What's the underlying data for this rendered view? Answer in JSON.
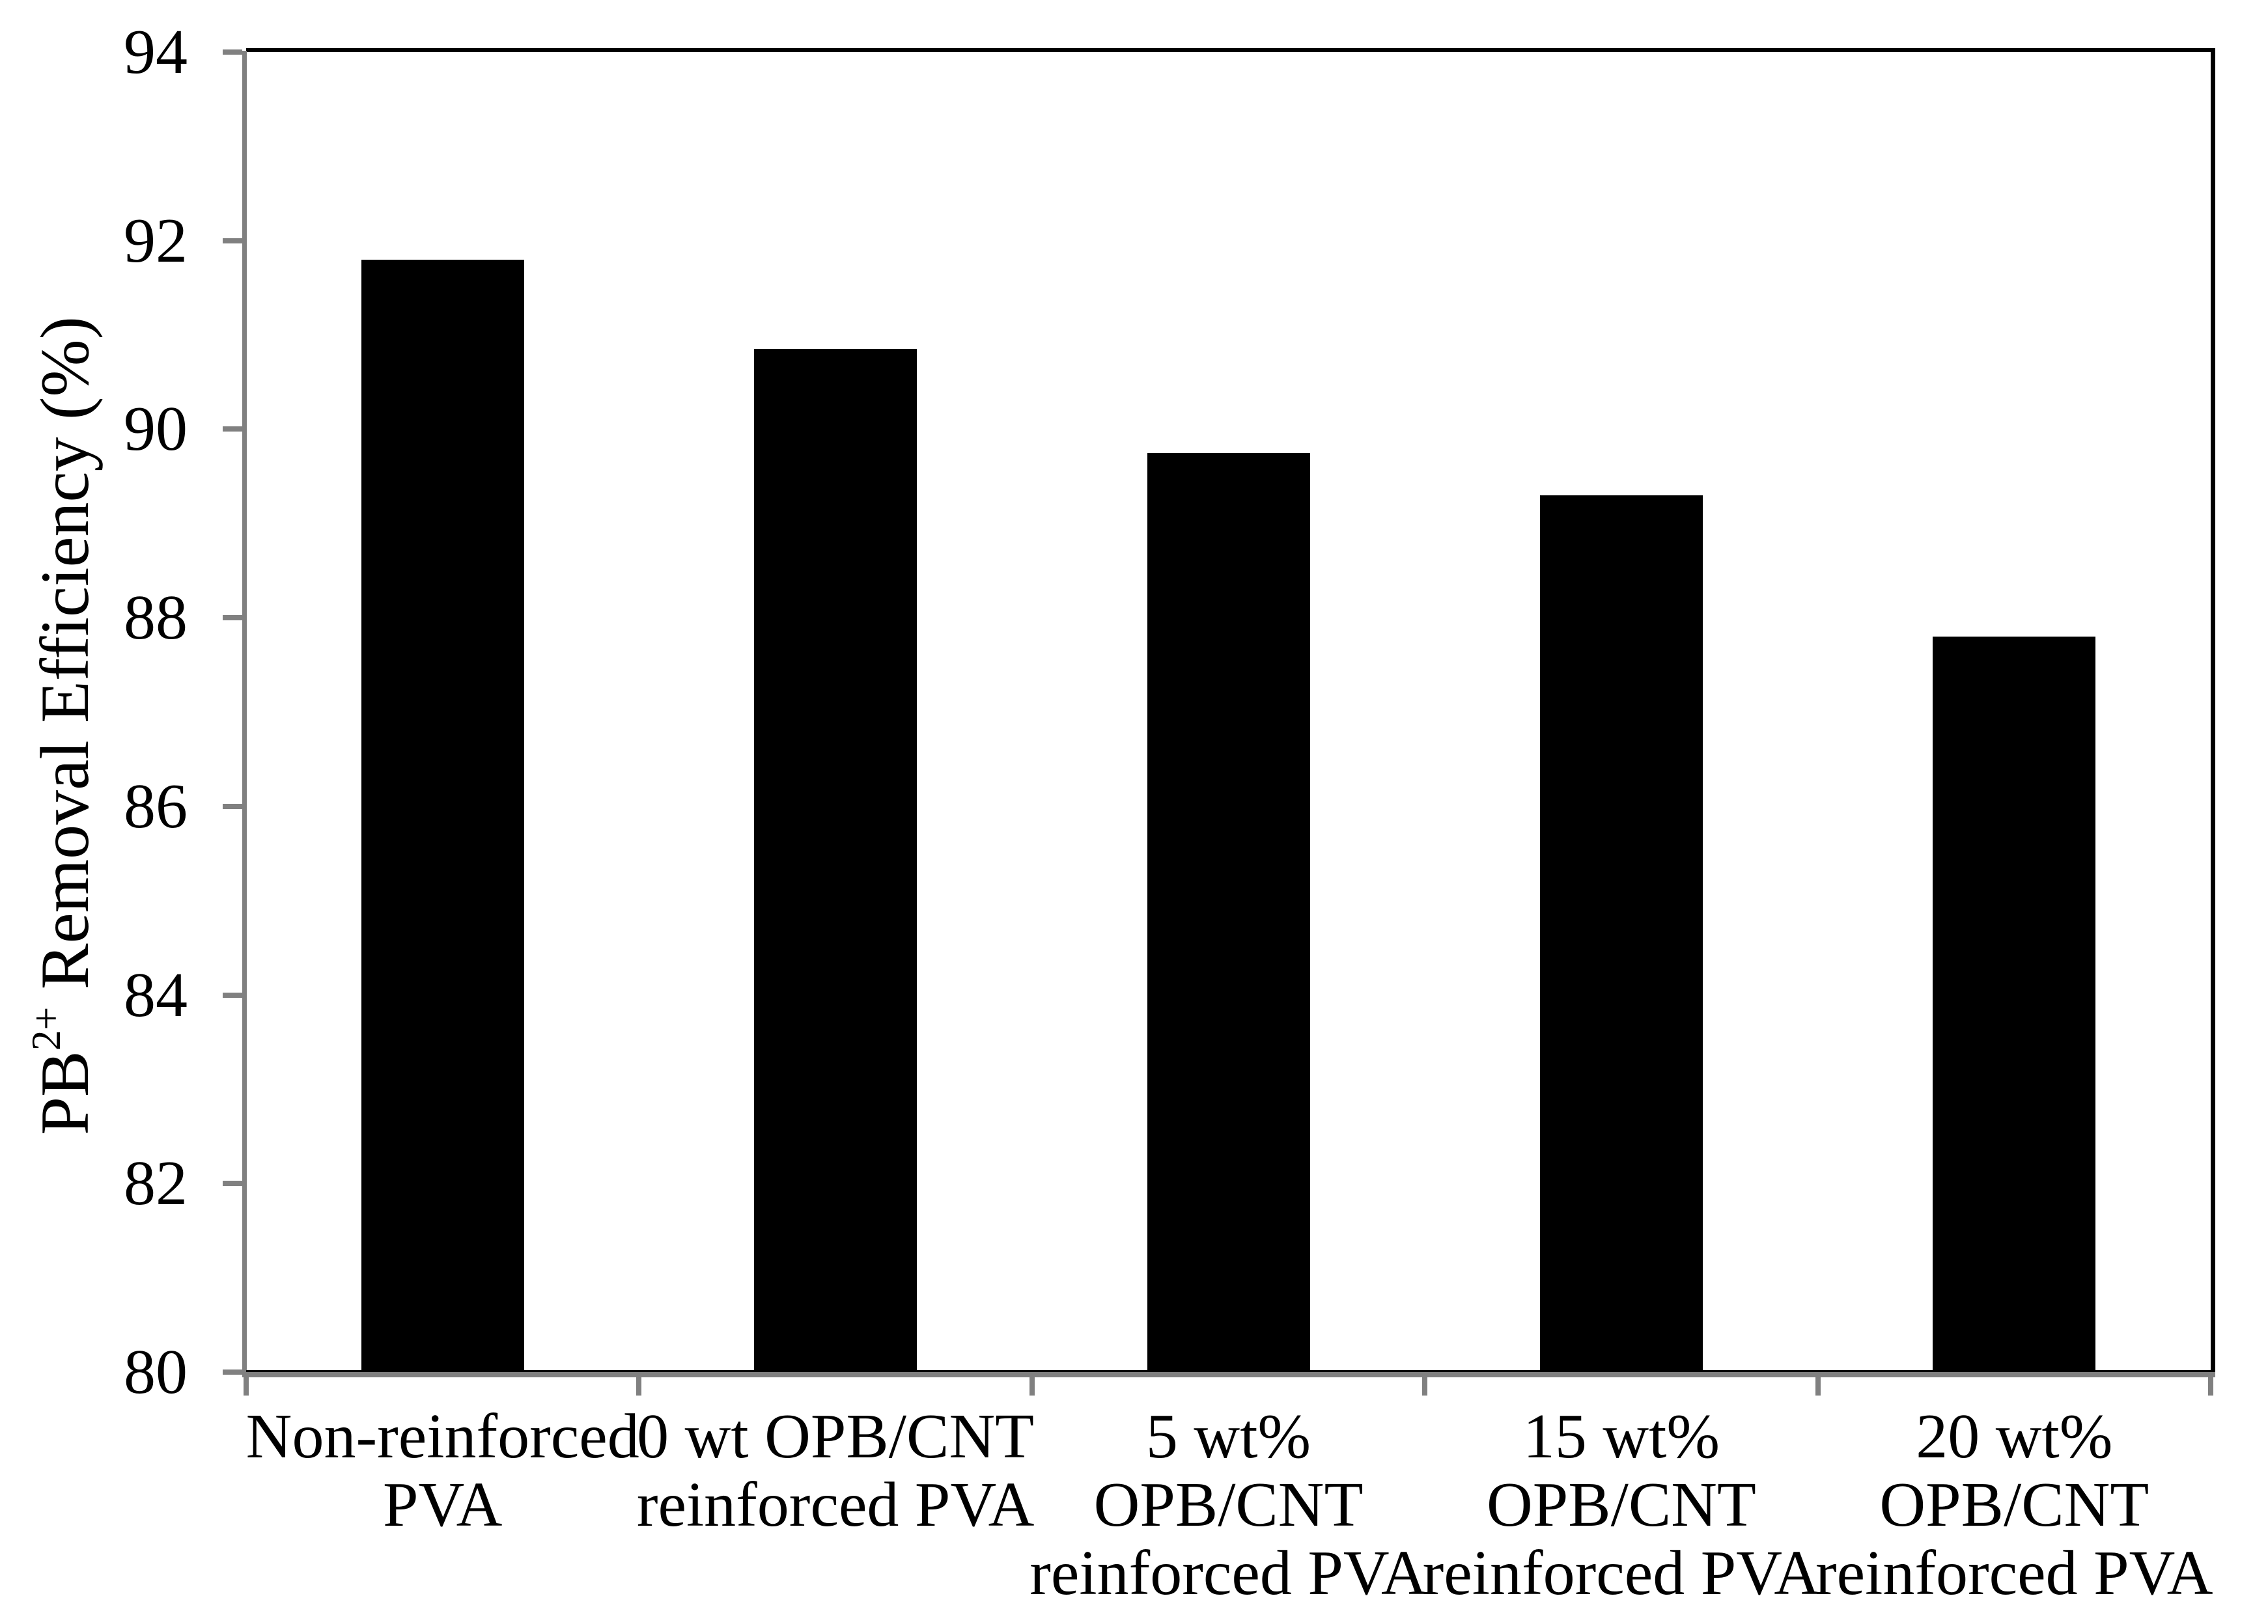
{
  "chart_data": {
    "type": "bar",
    "title": "",
    "xlabel": "",
    "ylabel": "PB2+ Removal Efficiency (%)",
    "ylabel_rich": {
      "base": "PB",
      "superscript": "2+",
      "rest": " Removal Efficiency (%)"
    },
    "categories": [
      "Non-reinforced\nPVA",
      "0 wt OPB/CNT\nreinforced PVA",
      "5 wt%\nOPB/CNT\nreinforced PVA",
      "15 wt%\nOPB/CNT\nreinforced PVA",
      "20 wt%\nOPB/CNT\nreinforced PVA"
    ],
    "values": [
      91.8,
      90.85,
      89.75,
      89.3,
      87.8
    ],
    "ylim": [
      80,
      94
    ],
    "ytick_step": 2,
    "yticks": [
      80,
      82,
      84,
      86,
      88,
      90,
      92,
      94
    ],
    "grid": false,
    "legend": false,
    "bar_color": "#000000",
    "axis_color": "#808080",
    "frame_color": "#000000",
    "background_color": "#ffffff",
    "text_color": "#000000"
  }
}
